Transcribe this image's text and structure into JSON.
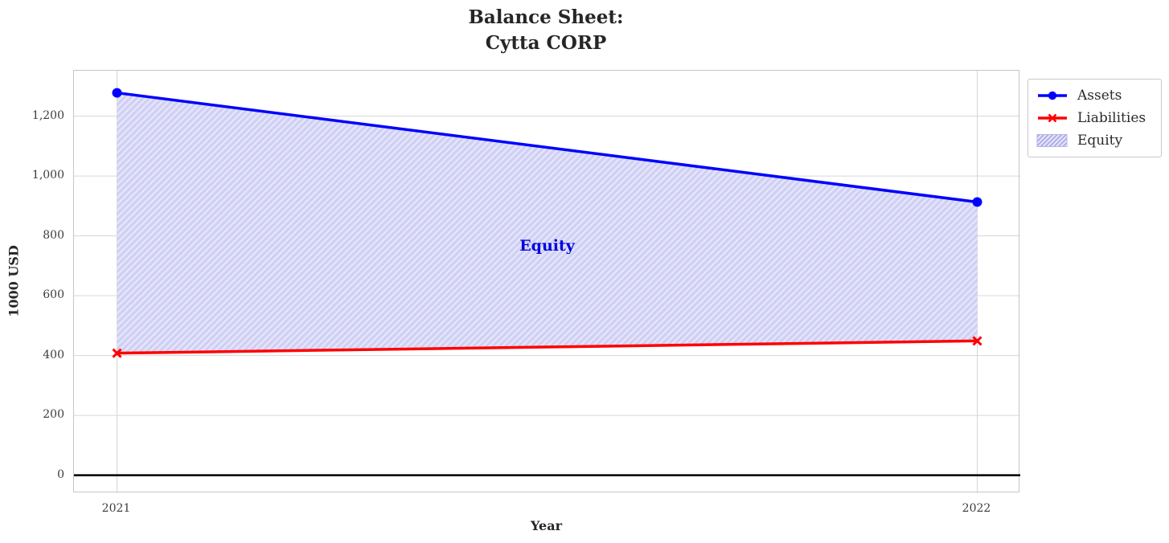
{
  "title": {
    "line1": "Balance Sheet:",
    "line2": "Cytta CORP"
  },
  "chart_data": {
    "type": "line",
    "x": [
      2021,
      2022
    ],
    "series": [
      {
        "name": "Assets",
        "values": [
          1278,
          913
        ],
        "color": "#0000ff",
        "marker": "circle"
      },
      {
        "name": "Liabilities",
        "values": [
          408,
          449
        ],
        "color": "#ff0000",
        "marker": "x"
      }
    ],
    "area": {
      "name": "Equity",
      "between": [
        "Assets",
        "Liabilities"
      ],
      "fill": "#e5e5fb",
      "hatch": "#cfcff4",
      "legend_hatch": "#a9a9e6",
      "border": "#b5b5dd"
    },
    "xlabel": "Year",
    "ylabel": "1000 USD",
    "xlim": [
      2020.95,
      2022.05
    ],
    "ylim": [
      -60,
      1352
    ],
    "yticks": [
      0,
      200,
      400,
      600,
      800,
      1000,
      1200
    ],
    "ytick_labels": [
      "0",
      "200",
      "400",
      "600",
      "800",
      "1,000",
      "1,200"
    ],
    "xticks": [
      2021,
      2022
    ],
    "xtick_labels": [
      "2021",
      "2022"
    ],
    "grid": true,
    "grid_color": "#d6d6d6",
    "zero_line": true,
    "zero_line_color": "#000000",
    "legend_position": "upper-right-outside",
    "annotation": {
      "text": "Equity",
      "x": 2021.5,
      "y": 766,
      "color": "#0000dd"
    }
  },
  "legend": {
    "items": [
      "Assets",
      "Liabilities",
      "Equity"
    ]
  }
}
